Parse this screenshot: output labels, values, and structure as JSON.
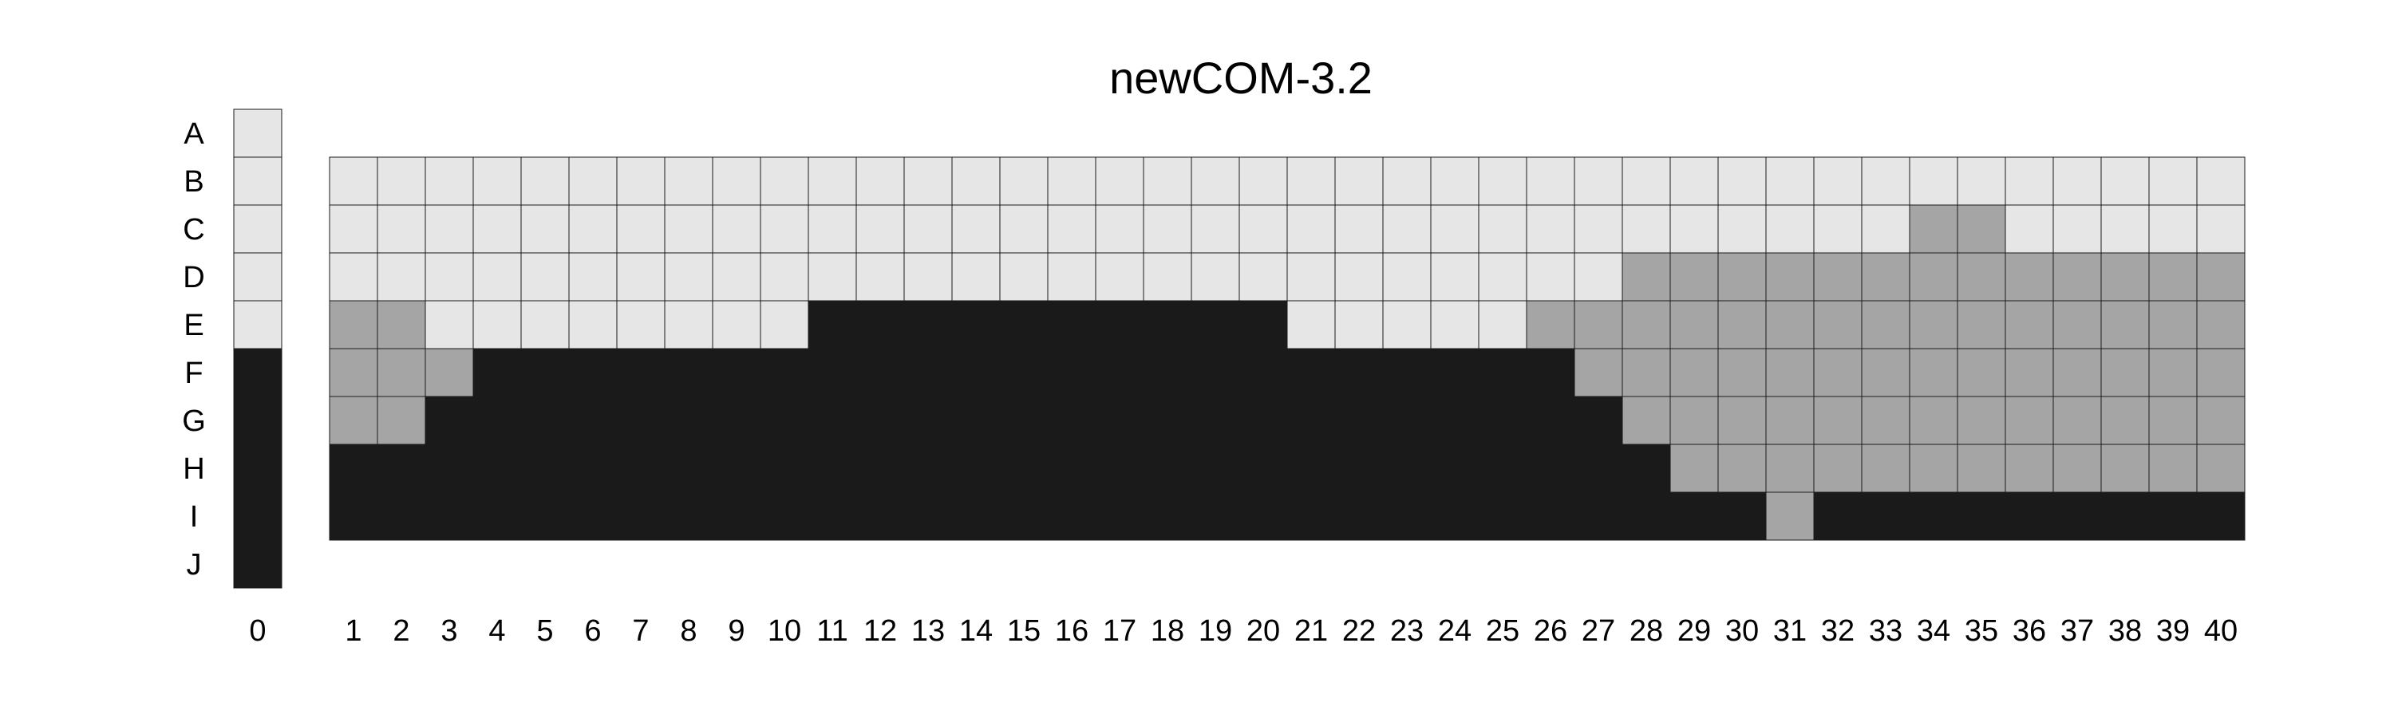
{
  "chart_data": {
    "type": "heatmap",
    "title": "newCOM-3.2",
    "colors": {
      "L": "#e6e6e6",
      "M": "#a5a5a5",
      "D": "#1a1a1a"
    },
    "state_names": {
      "L": "light",
      "M": "gray",
      "D": "black"
    },
    "column0": {
      "label": "0",
      "row_labels": [
        "A",
        "B",
        "C",
        "D",
        "E",
        "F",
        "G",
        "H",
        "I",
        "J"
      ],
      "values": [
        "L",
        "L",
        "L",
        "L",
        "L",
        "D",
        "D",
        "D",
        "D",
        "D"
      ]
    },
    "main_grid": {
      "row_labels": [
        "B",
        "C",
        "D",
        "E",
        "F",
        "G",
        "H",
        "I"
      ],
      "column_labels": [
        "1",
        "2",
        "3",
        "4",
        "5",
        "6",
        "7",
        "8",
        "9",
        "10",
        "11",
        "12",
        "13",
        "14",
        "15",
        "16",
        "17",
        "18",
        "19",
        "20",
        "21",
        "22",
        "23",
        "24",
        "25",
        "26",
        "27",
        "28",
        "29",
        "30",
        "31",
        "32",
        "33",
        "34",
        "35",
        "36",
        "37",
        "38",
        "39",
        "40"
      ],
      "rows": [
        {
          "row": "B",
          "values": "LLLLLLLLLLLLLLLLLLLLLLLLLLLLLLLLLLLLLLLL"
        },
        {
          "row": "C",
          "values": "LLLLLLLLLLLLLLLLLLLLLLLLLLLLLLLLLMMLLLLL"
        },
        {
          "row": "D",
          "values": "LLLLLLLLLLLLLLLLLLLLLLLLLLLMMMMMMMMMMMMM"
        },
        {
          "row": "E",
          "values": "MMLLLLLLLLDDDDDDDDDDLLLLLMMMMMMMMMMMMMMM"
        },
        {
          "row": "F",
          "values": "MMMDDDDDDDDDDDDDDDDDDDDDDDMMMMMMMMMMMMMM"
        },
        {
          "row": "G",
          "values": "MMDDDDDDDDDDDDDDDDDDDDDDDDDMMMMMMMMMMMMM"
        },
        {
          "row": "H",
          "values": "DDDDDDDDDDDDDDDDDDDDDDDDDDDDMMMMMMMMMMMM"
        },
        {
          "row": "I",
          "values": "DDDDDDDDDDDDDDDDDDDDDDDDDDDDDDMDDDDDDDDD"
        }
      ]
    }
  }
}
